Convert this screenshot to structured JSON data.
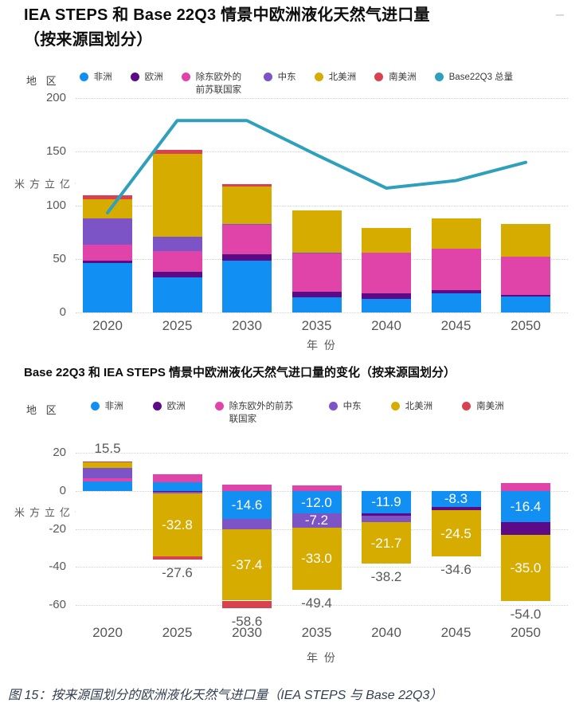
{
  "page": {
    "title_line1": "IEA STEPS 和 Base 22Q3 情景中欧洲液化天然气进口量",
    "title_line2": "（按来源国划分）",
    "caption": "图 15：按来源国划分的欧洲液化天然气进口量（IEA STEPS 与 Base 22Q3）"
  },
  "colors": {
    "africa": "#128FF2",
    "europe": "#5C0A87",
    "fsu": "#E044A8",
    "middle_east": "#7D54C6",
    "north_america": "#D6AC00",
    "south_america": "#D8414F",
    "base22q3_line": "#2FA0BC",
    "grid": "#D2D2D2",
    "tick_text": "#595959",
    "caption_text": "#333F50"
  },
  "chart_data": [
    {
      "type": "bar",
      "stacked": true,
      "title": "IEA STEPS 和 Base 22Q3 情景中欧洲液化天然气进口量（按来源国划分）",
      "legend_title": "地 区",
      "legend_position": "top",
      "grid": true,
      "region_keys": [
        "africa",
        "europe",
        "fsu-ex-eastern-europe",
        "middle-east",
        "north-america",
        "south-america"
      ],
      "regions": [
        "非洲",
        "欧洲",
        "除东欧外的前苏联国家",
        "中东",
        "北美洲",
        "南美洲"
      ],
      "region_colors": [
        "#128FF2",
        "#5C0A87",
        "#E044A8",
        "#7D54C6",
        "#D6AC00",
        "#D8414F"
      ],
      "categories": [
        "2020",
        "2025",
        "2030",
        "2035",
        "2040",
        "2045",
        "2050"
      ],
      "series": [
        {
          "name": "非洲",
          "values": [
            46,
            32.5,
            48,
            14,
            13,
            17.5,
            15
          ]
        },
        {
          "name": "欧洲",
          "values": [
            2.5,
            5.5,
            6,
            5,
            4.5,
            3.5,
            1
          ]
        },
        {
          "name": "除东欧外的前苏联国家",
          "values": [
            15,
            19,
            28,
            36,
            38,
            38.5,
            36
          ]
        },
        {
          "name": "中东",
          "values": [
            24.5,
            13.5,
            0.5,
            1,
            0,
            0,
            0
          ]
        },
        {
          "name": "北美洲",
          "values": [
            17.5,
            77.5,
            35,
            39,
            23.5,
            28,
            30.5
          ]
        },
        {
          "name": "南美洲",
          "values": [
            3.5,
            3.5,
            2,
            0,
            0,
            0,
            0
          ]
        }
      ],
      "line_series": {
        "name": "Base22Q3 总量",
        "key": "base22q3-total",
        "color": "#2FA0BC",
        "values": [
          93,
          179,
          179,
          147,
          116,
          123,
          140
        ]
      },
      "xlabel": "年 份",
      "ylabel": "十亿立方米",
      "ylim": [
        0,
        200
      ],
      "yticks": [
        0,
        50,
        100,
        150,
        200
      ]
    },
    {
      "type": "bar",
      "stacked": true,
      "title": "Base 22Q3 和 IEA STEPS 情景中欧洲液化天然气进口量的变化（按来源国划分）",
      "legend_title": "地 区",
      "legend_position": "top",
      "grid": true,
      "region_keys": [
        "africa",
        "europe",
        "fsu-ex-eastern-europe",
        "middle-east",
        "north-america",
        "south-america"
      ],
      "regions": [
        "非洲",
        "欧洲",
        "除东欧外的前苏联国家",
        "中东",
        "北美洲",
        "南美洲"
      ],
      "region_colors": [
        "#128FF2",
        "#5C0A87",
        "#E044A8",
        "#7D54C6",
        "#D6AC00",
        "#D8414F"
      ],
      "categories": [
        "2020",
        "2025",
        "2030",
        "2035",
        "2040",
        "2045",
        "2050"
      ],
      "series": [
        {
          "name": "非洲",
          "values": [
            5,
            4.5,
            -14.6,
            -12,
            -11.9,
            -8.3,
            -16.4
          ]
        },
        {
          "name": "欧洲",
          "values": [
            0,
            -0.7,
            0,
            0,
            -1.3,
            -1.8,
            -6.6
          ]
        },
        {
          "name": "除东欧外的前苏联国家",
          "values": [
            1.5,
            4,
            3.2,
            2.8,
            0,
            0,
            4
          ]
        },
        {
          "name": "中东",
          "values": [
            5.7,
            -0.8,
            -5.7,
            -7.2,
            -3.3,
            0,
            0
          ]
        },
        {
          "name": "北美洲",
          "values": [
            2.8,
            -32.8,
            -37.4,
            -33,
            -21.7,
            -24.5,
            -35
          ]
        },
        {
          "name": "南美洲",
          "values": [
            0.5,
            -1.8,
            -4.1,
            0,
            0,
            0,
            0
          ]
        }
      ],
      "value_labels": [
        {
          "category": "2030",
          "region": "非洲",
          "text": "-14.6"
        },
        {
          "category": "2035",
          "region": "非洲",
          "text": "-12.0"
        },
        {
          "category": "2040",
          "region": "非洲",
          "text": "-11.9"
        },
        {
          "category": "2045",
          "region": "非洲",
          "text": "-8.3"
        },
        {
          "category": "2050",
          "region": "非洲",
          "text": "-16.4"
        },
        {
          "category": "2035",
          "region": "中东",
          "text": "-7.2"
        },
        {
          "category": "2025",
          "region": "北美洲",
          "text": "-32.8"
        },
        {
          "category": "2030",
          "region": "北美洲",
          "text": "-37.4"
        },
        {
          "category": "2035",
          "region": "北美洲",
          "text": "-33.0"
        },
        {
          "category": "2040",
          "region": "北美洲",
          "text": "-21.7"
        },
        {
          "category": "2045",
          "region": "北美洲",
          "text": "-24.5"
        },
        {
          "category": "2050",
          "region": "北美洲",
          "text": "-35.0"
        }
      ],
      "totals": [
        {
          "category": "2020",
          "text": "15.5",
          "position": "above"
        },
        {
          "category": "2025",
          "text": "-27.6",
          "position": "below"
        },
        {
          "category": "2030",
          "text": "-58.6",
          "position": "below"
        },
        {
          "category": "2035",
          "text": "-49.4",
          "position": "below"
        },
        {
          "category": "2040",
          "text": "-38.2",
          "position": "below"
        },
        {
          "category": "2045",
          "text": "-34.6",
          "position": "below"
        },
        {
          "category": "2050",
          "text": "-54.0",
          "position": "below"
        }
      ],
      "xlabel": "年 份",
      "ylabel": "十亿立方米",
      "ylim": [
        -60,
        20
      ],
      "yticks": [
        20,
        0,
        -20,
        -40,
        -60
      ]
    }
  ]
}
